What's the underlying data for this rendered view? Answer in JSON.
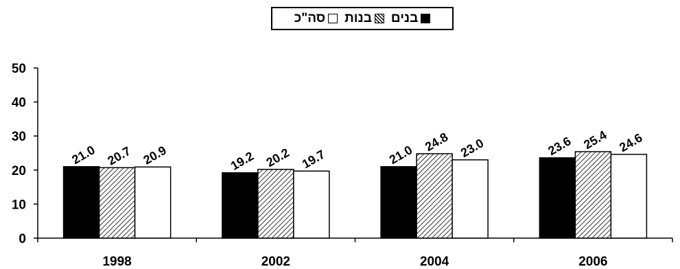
{
  "chart_data": {
    "type": "bar",
    "categories": [
      "1998",
      "2002",
      "2004",
      "2006"
    ],
    "series": [
      {
        "name": "בנים",
        "values": [
          21.0,
          19.2,
          21.0,
          23.6
        ],
        "style": "solid",
        "color": "#000000"
      },
      {
        "name": "בנות",
        "values": [
          20.7,
          20.2,
          24.8,
          25.4
        ],
        "style": "hatched",
        "color": "#000000"
      },
      {
        "name": "סה\"כ",
        "values": [
          20.9,
          19.7,
          23.0,
          24.6
        ],
        "style": "open",
        "color": "#ffffff"
      }
    ],
    "value_labels": [
      [
        "21.0",
        "19.2",
        "21.0",
        "23.6"
      ],
      [
        "20.7",
        "20.2",
        "24.8",
        "25.4"
      ],
      [
        "20.9",
        "19.7",
        "23.0",
        "24.6"
      ]
    ],
    "ylim": [
      0,
      50
    ],
    "yticks": [
      "0",
      "10",
      "20",
      "30",
      "40",
      "50"
    ],
    "grid": false,
    "legend_position": "top-center"
  }
}
